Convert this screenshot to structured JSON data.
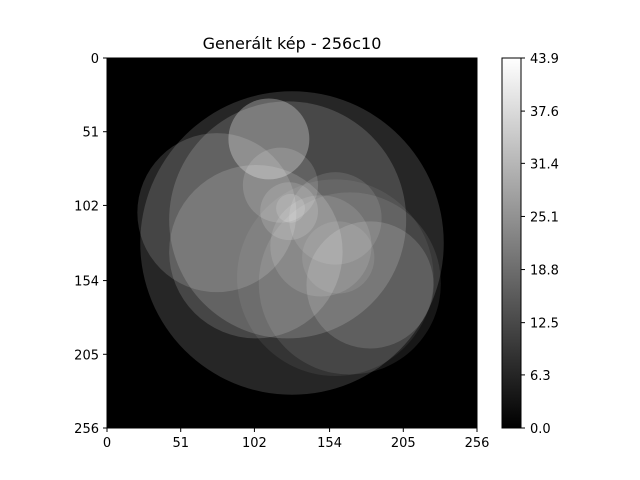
{
  "chart_data": {
    "type": "heatmap",
    "title": "Generált kép - 256c10",
    "colormap": "gray",
    "xlim": [
      0,
      256
    ],
    "ylim": [
      256,
      0
    ],
    "xticks": [
      0,
      51,
      102,
      154,
      205,
      256
    ],
    "yticks": [
      0,
      51,
      102,
      154,
      205,
      256
    ],
    "xtick_labels": [
      "0",
      "51",
      "102",
      "154",
      "205",
      "256"
    ],
    "ytick_labels": [
      "0",
      "51",
      "102",
      "154",
      "205",
      "256"
    ],
    "colorbar": {
      "min": 0.0,
      "max": 43.9,
      "ticks": [
        0.0,
        6.3,
        12.5,
        18.8,
        25.1,
        31.4,
        37.6,
        43.9
      ],
      "tick_labels": [
        "0.0",
        "6.3",
        "12.5",
        "18.8",
        "25.1",
        "31.4",
        "37.6",
        "43.9"
      ]
    },
    "background_value": 0.0,
    "circles": [
      {
        "cx": 128,
        "cy": 128,
        "r": 105,
        "value": 6.5
      },
      {
        "cx": 125,
        "cy": 112,
        "r": 82,
        "value": 7.0
      },
      {
        "cx": 103,
        "cy": 134,
        "r": 60,
        "value": 6.5
      },
      {
        "cx": 76,
        "cy": 107,
        "r": 55,
        "value": 6.3
      },
      {
        "cx": 112,
        "cy": 56,
        "r": 28,
        "value": 12.5
      },
      {
        "cx": 158,
        "cy": 111,
        "r": 32,
        "value": 5.0
      },
      {
        "cx": 168,
        "cy": 156,
        "r": 63,
        "value": 4.0
      },
      {
        "cx": 158,
        "cy": 152,
        "r": 68,
        "value": 3.0
      },
      {
        "cx": 182,
        "cy": 157,
        "r": 44,
        "value": 6.0
      },
      {
        "cx": 120,
        "cy": 88,
        "r": 26,
        "value": 6.0
      },
      {
        "cx": 148,
        "cy": 130,
        "r": 35,
        "value": 5.0
      },
      {
        "cx": 126,
        "cy": 106,
        "r": 20,
        "value": 6.0
      },
      {
        "cx": 160,
        "cy": 138,
        "r": 25,
        "value": 4.0
      },
      {
        "cx": 127,
        "cy": 104,
        "r": 10,
        "value": 6.0
      }
    ]
  }
}
